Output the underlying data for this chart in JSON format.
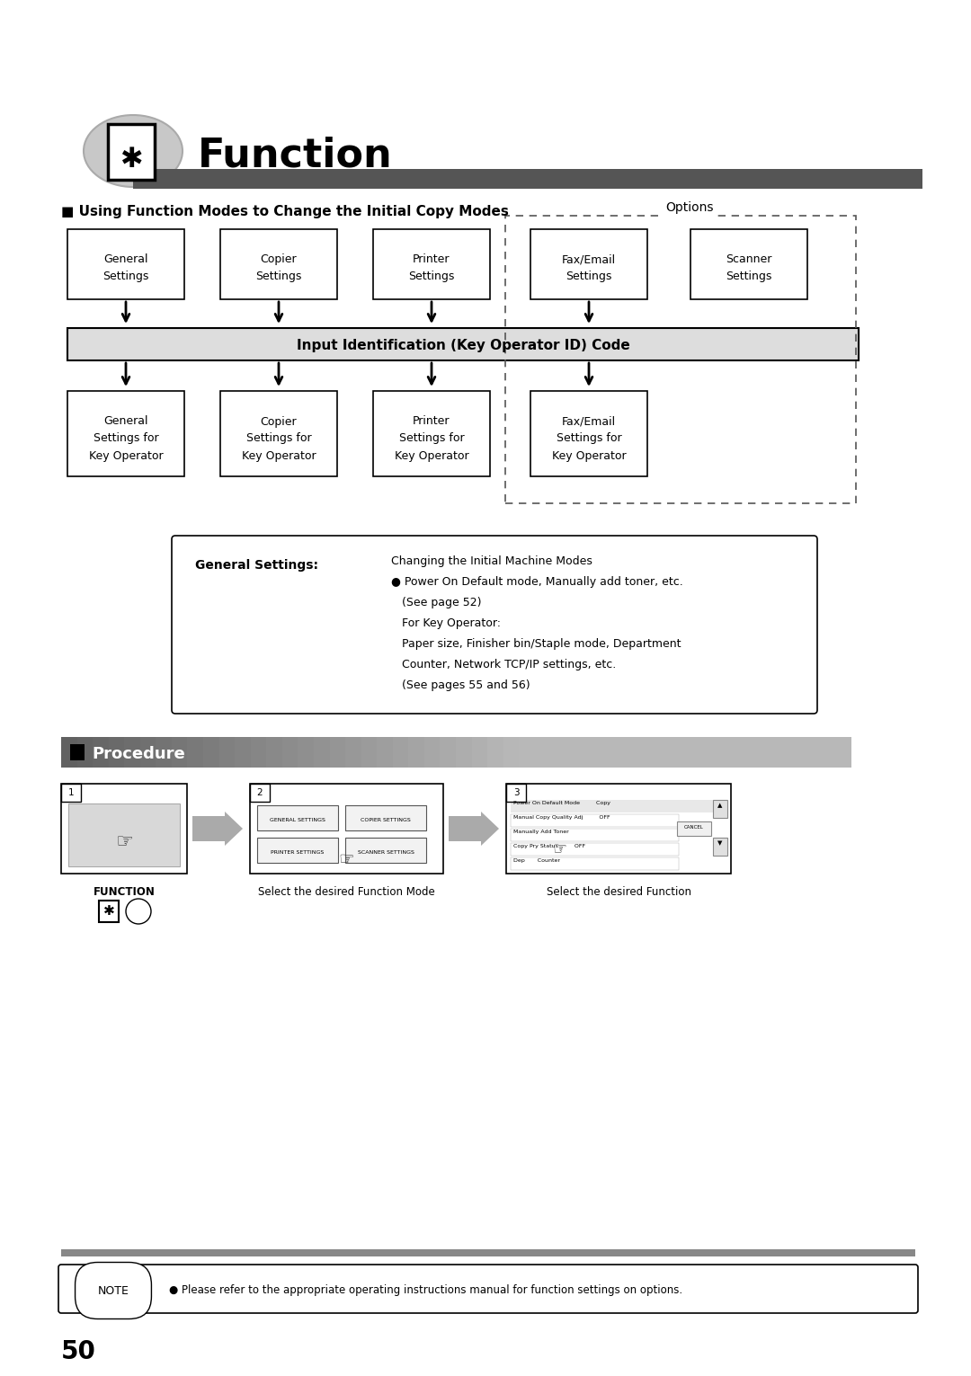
{
  "title": "Function",
  "section1_title": "■ Using Function Modes to Change the Initial Copy Modes",
  "options_label": "Options",
  "middle_box_label": "Input Identification (Key Operator ID) Code",
  "general_settings_bold": "General Settings:",
  "general_settings_text_line1": "Changing the Initial Machine Modes",
  "general_settings_text_line2": "● Power On Default mode, Manually add toner, etc.",
  "general_settings_text_line3": "   (See page 52)",
  "general_settings_text_line4": "   For Key Operator:",
  "general_settings_text_line5": "   Paper size, Finisher bin/Staple mode, Department",
  "general_settings_text_line6": "   Counter, Network TCP/IP settings, etc.",
  "general_settings_text_line7": "   (See pages 55 and 56)",
  "section2_title": "Procedure",
  "procedure_step1_label": "FUNCTION",
  "procedure_step2_label": "Select the desired Function Mode",
  "procedure_step3_label": "Select the desired Function",
  "note_text": "● Please refer to the appropriate operating instructions manual for function settings on options.",
  "page_number": "50",
  "bg_color": "#ffffff"
}
